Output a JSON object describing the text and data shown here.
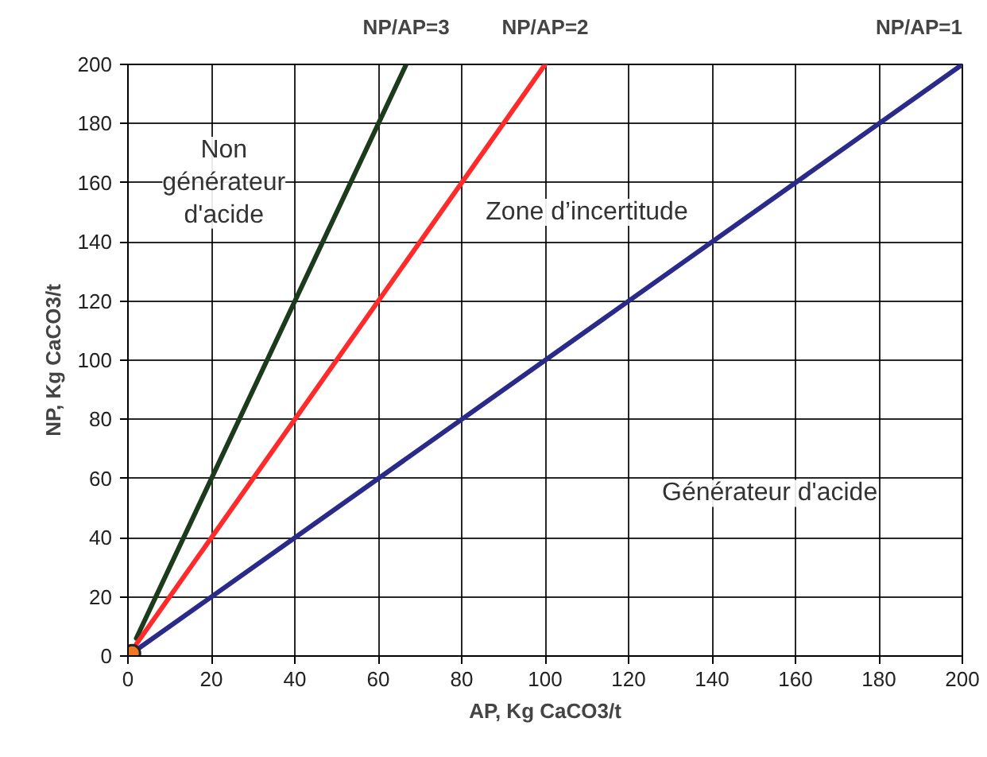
{
  "chart_data": {
    "type": "line",
    "xlabel": "AP, Kg CaCO3/t",
    "ylabel": "NP, Kg CaCO3/t",
    "xlim": [
      0,
      200
    ],
    "ylim": [
      0,
      200
    ],
    "xticks": [
      0,
      20,
      40,
      60,
      80,
      100,
      120,
      140,
      160,
      180,
      200
    ],
    "yticks": [
      0,
      20,
      40,
      60,
      80,
      100,
      120,
      140,
      160,
      180,
      200
    ],
    "grid": true,
    "series": [
      {
        "name": "NP/AP=3",
        "color": "#1c3a1c",
        "x": [
          2,
          66.7
        ],
        "values": [
          6,
          200
        ]
      },
      {
        "name": "NP/AP=2",
        "color": "#ff2a2a",
        "x": [
          2,
          100
        ],
        "values": [
          4,
          200
        ]
      },
      {
        "name": "NP/AP=1",
        "color": "#2a2a8a",
        "x": [
          2,
          200
        ],
        "values": [
          2,
          200
        ]
      },
      {
        "type": "scatter",
        "color": "#f07820",
        "marker": "circle",
        "x": [
          1
        ],
        "values": [
          1
        ]
      }
    ],
    "annotations": [
      "Non\ngénérateur\nd'acide",
      "Zone d’incertitude",
      "Générateur d'acide"
    ]
  }
}
